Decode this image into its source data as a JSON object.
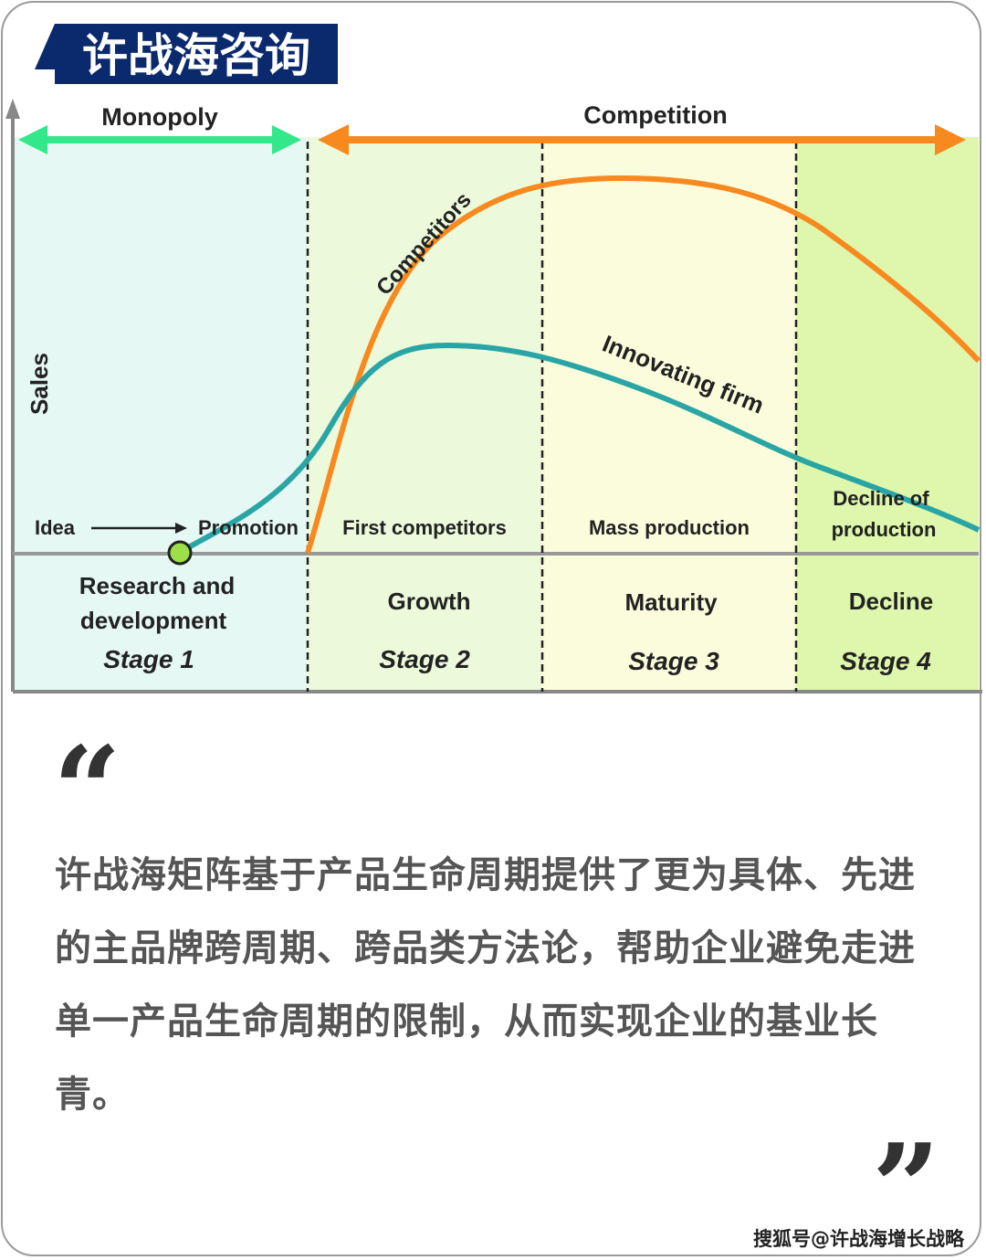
{
  "logo": {
    "text": "许战海咨询",
    "bg": "#0b2a6e"
  },
  "diagram": {
    "y_axis_label": "Sales",
    "top_labels": {
      "monopoly": "Monopoly",
      "competition": "Competition"
    },
    "curves": {
      "competitors": "Competitors",
      "innovating_firm": "Innovating firm"
    },
    "phase_labels": {
      "idea": "Idea",
      "promotion": "Promotion",
      "first_competitors": "First competitors",
      "mass_production": "Mass production",
      "decline_line1": "Decline of",
      "decline_line2": "production"
    },
    "stages": [
      {
        "name_line1": "Research and",
        "name_line2": "development",
        "stage": "Stage 1"
      },
      {
        "name_line1": "Growth",
        "name_line2": "",
        "stage": "Stage 2"
      },
      {
        "name_line1": "Maturity",
        "name_line2": "",
        "stage": "Stage 3"
      },
      {
        "name_line1": "Decline",
        "name_line2": "",
        "stage": "Stage 4"
      }
    ],
    "colors": {
      "monopoly_arrow": "#33e88a",
      "competition_arrow": "#f7891f",
      "competitors_curve": "#f7891f",
      "innovating_curve": "#2aa5a5",
      "stage1_bg": "#e5f8f4",
      "stage2_bg": "#ecfadb",
      "stage3_bg": "#fbfcdc",
      "stage4_bg": "#def7ad"
    }
  },
  "quote": {
    "open_mark": "“",
    "close_mark": "”",
    "text": "许战海矩阵基于产品生命周期提供了更为具体、先进的主品牌跨周期、跨品类方法论，帮助企业避免走进单一产品生命周期的限制，从而实现企业的基业长青。"
  },
  "watermark": "搜狐号@许战海增长战略"
}
